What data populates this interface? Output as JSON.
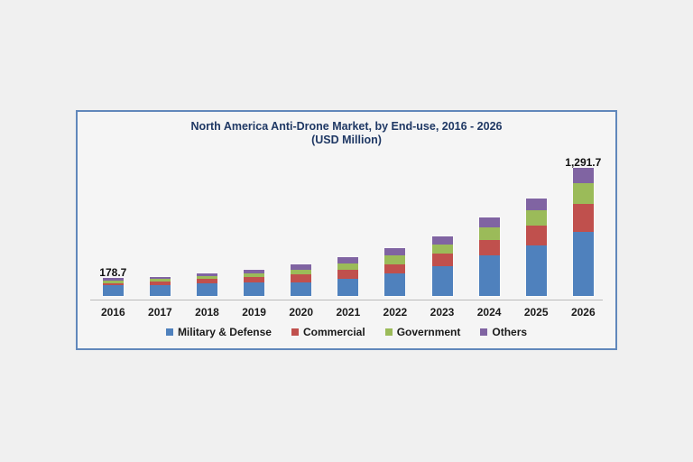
{
  "chart": {
    "title_line1": "North America Anti-Drone Market, by End-use, 2016 - 2026",
    "title_line2": "(USD Million)"
  },
  "chart_data": {
    "type": "bar",
    "stacked": true,
    "title": "North America Anti-Drone Market, by End-use, 2016 - 2026 (USD Million)",
    "xlabel": "",
    "ylabel": "USD Million",
    "categories": [
      "2016",
      "2017",
      "2018",
      "2019",
      "2020",
      "2021",
      "2022",
      "2023",
      "2024",
      "2025",
      "2026"
    ],
    "series": [
      {
        "name": "Military & Defense",
        "color": "#4F81BD",
        "values": [
          104.7,
          111,
          129,
          135,
          140,
          174,
          225,
          297,
          411,
          510,
          650.0
        ]
      },
      {
        "name": "Commercial",
        "color": "#C0504D",
        "values": [
          27.0,
          33,
          42,
          54,
          75,
          90,
          96,
          126,
          156,
          195,
          278.0
        ]
      },
      {
        "name": "Government",
        "color": "#9BBB59",
        "values": [
          26.0,
          30,
          30,
          36,
          51,
          66,
          84,
          99,
          120,
          159,
          212.0
        ]
      },
      {
        "name": "Others",
        "color": "#8064A2",
        "values": [
          21.0,
          21,
          24,
          36,
          52,
          60,
          78,
          81,
          105,
          120,
          151.7
        ]
      }
    ],
    "totals": [
      178.7,
      195,
      225,
      261,
      318,
      390,
      483,
      603,
      792,
      984,
      1291.7
    ],
    "data_labels": [
      {
        "category": "2016",
        "text": "178.7"
      },
      {
        "category": "2026",
        "text": "1,291.7"
      }
    ],
    "legend_position": "bottom",
    "grid": false,
    "ylim": [
      0,
      1350
    ]
  },
  "colors": {
    "panel_border": "#6188BB",
    "axis_line": "#BBBBBB",
    "title_text": "#1F3864",
    "label_text": "#1A1A1A",
    "page_bg": "#F0F0F0",
    "panel_bg": "#F5F5F5"
  }
}
